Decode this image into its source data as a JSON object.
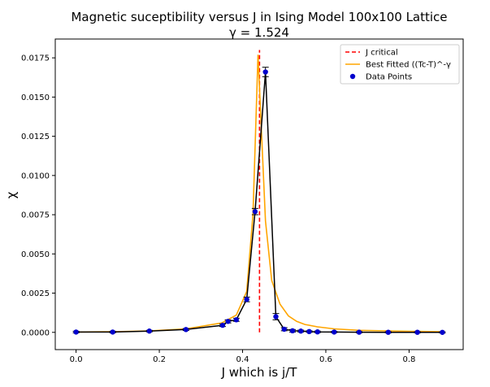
{
  "chart_data": {
    "type": "scatter",
    "title": "Magnetic suceptibility versus J in Ising Model 100x100 Lattice",
    "subtitle": "γ = 1.524",
    "xlabel": "J which is j/T",
    "ylabel": "χ",
    "xlim": [
      -0.05,
      0.93
    ],
    "ylim": [
      -0.0011,
      0.0187
    ],
    "xticks": [
      0.0,
      0.2,
      0.4,
      0.6,
      0.8
    ],
    "xtick_labels": [
      "0.0",
      "0.2",
      "0.4",
      "0.6",
      "0.8"
    ],
    "yticks": [
      0.0,
      0.0025,
      0.005,
      0.0075,
      0.01,
      0.0125,
      0.015,
      0.0175
    ],
    "ytick_labels": [
      "0.0000",
      "0.0025",
      "0.0050",
      "0.0075",
      "0.0100",
      "0.0125",
      "0.0150",
      "0.0175"
    ],
    "legend_position": "top-right",
    "legend": [
      "J critical",
      "Best Fitted ((Tc-T)^-γ",
      "Data Points"
    ],
    "series": [
      {
        "name": "J critical",
        "kind": "vline",
        "color": "#ff0000",
        "x": 0.4407,
        "y_range": [
          0.0,
          0.018
        ]
      },
      {
        "name": "Best Fitted ((Tc-T)^-γ",
        "kind": "line",
        "color": "#ffa500",
        "x": [
          0.0,
          0.088,
          0.176,
          0.264,
          0.35,
          0.385,
          0.41,
          0.425,
          0.437,
          0.455,
          0.47,
          0.49,
          0.51,
          0.53,
          0.55,
          0.58,
          0.62,
          0.68,
          0.75,
          0.82,
          0.88
        ],
        "y": [
          2e-05,
          4e-05,
          9e-05,
          0.00022,
          0.0006,
          0.0011,
          0.0026,
          0.0075,
          0.0177,
          0.0071,
          0.0033,
          0.0018,
          0.00105,
          0.0007,
          0.0005,
          0.00035,
          0.00022,
          0.00013,
          9e-05,
          6e-05,
          4e-05
        ]
      },
      {
        "name": "Data Points",
        "kind": "errorbar",
        "color": "#0000cd",
        "line_color": "#000000",
        "x": [
          0.0,
          0.088,
          0.176,
          0.264,
          0.352,
          0.365,
          0.385,
          0.41,
          0.43,
          0.455,
          0.48,
          0.5,
          0.52,
          0.54,
          0.56,
          0.58,
          0.62,
          0.68,
          0.75,
          0.82,
          0.88
        ],
        "y": [
          2e-05,
          2e-05,
          8e-05,
          0.00018,
          0.00045,
          0.0007,
          0.0008,
          0.0021,
          0.0077,
          0.0166,
          0.001,
          0.0002,
          0.0001,
          8e-05,
          5e-05,
          3e-05,
          2e-05,
          1e-05,
          5e-06,
          5e-06,
          0.0
        ],
        "yerr": [
          5e-05,
          5e-05,
          5e-05,
          6e-05,
          8e-05,
          0.0001,
          0.0001,
          0.00015,
          0.0002,
          0.0003,
          0.0002,
          0.0001,
          8e-05,
          6e-05,
          5e-05,
          5e-05,
          4e-05,
          4e-05,
          4e-05,
          4e-05,
          4e-05
        ]
      }
    ],
    "colors": {
      "jcritical": "#ff0000",
      "fit": "#ffa500",
      "points": "#0000cd",
      "connect": "#000000"
    }
  }
}
